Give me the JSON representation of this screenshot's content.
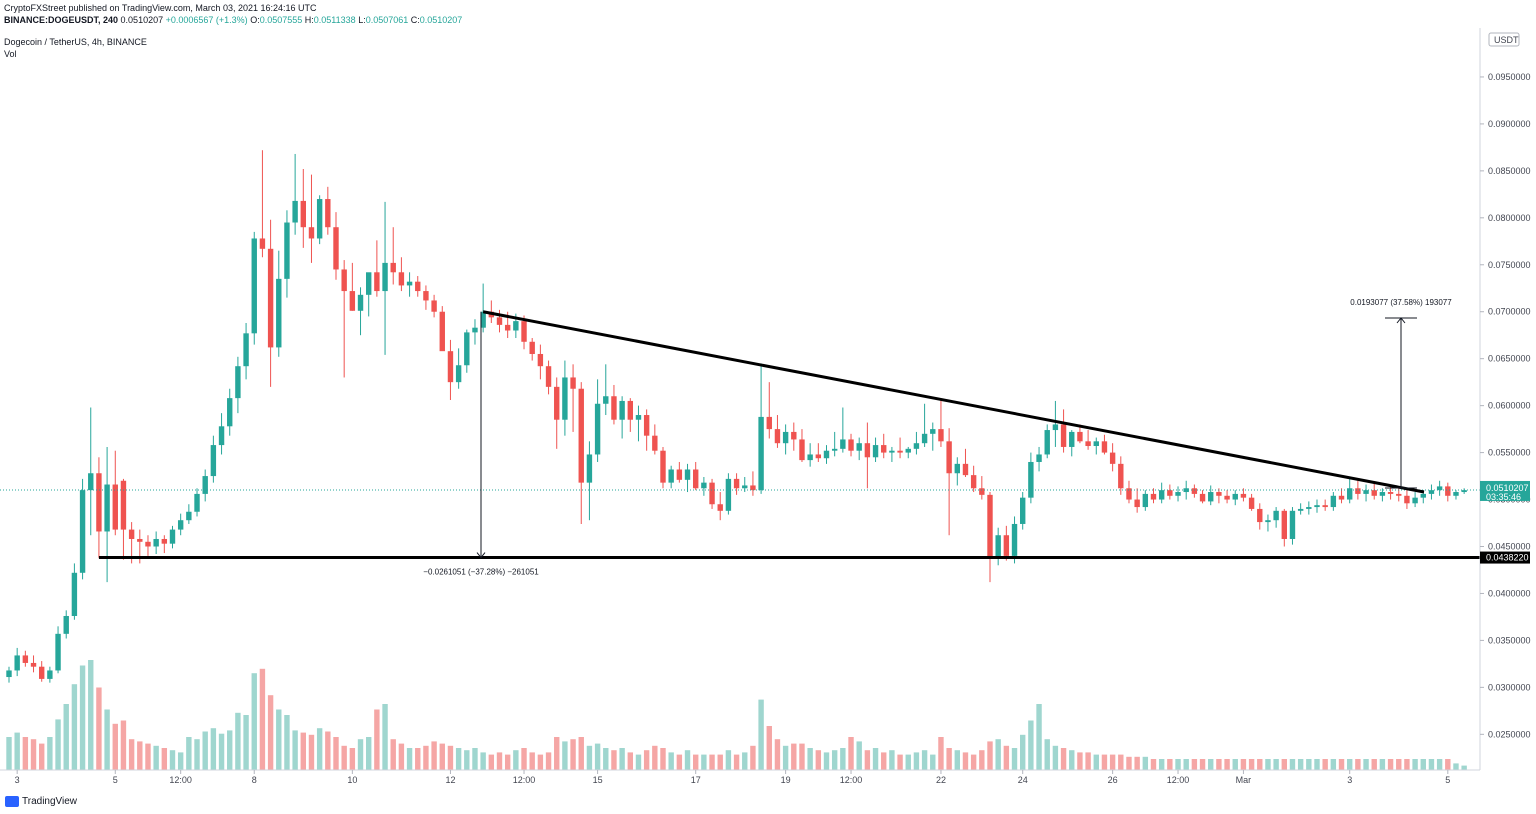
{
  "header": {
    "publisher_line": "CryptoFXStreet published on TradingView.com, March 03, 2021 16:24:16 UTC",
    "symbol_line": {
      "symbol": "BINANCE:DOGEUSDT, 240",
      "last": "0.0510207",
      "change": "+0.0006567 (+1.3%)",
      "o_label": "O:",
      "o": "0.0507555",
      "h_label": "H:",
      "h": "0.0511338",
      "l_label": "L:",
      "l": "0.0507061",
      "c_label": "C:",
      "c": "0.0510207"
    },
    "legend_title": "Dogecoin / TetherUS, 4h, BINANCE",
    "legend_vol": "Vol"
  },
  "branding": {
    "logo_text": "TradingView"
  },
  "colors": {
    "up": "#26a69a",
    "down": "#ef5350",
    "up_vol": "#9fd6cf",
    "down_vol": "#f5a6a5",
    "line": "#000000",
    "last_price_bg": "#26a69a"
  },
  "chart_data": {
    "type": "candlestick",
    "title": "Dogecoin / TetherUS, 4h, BINANCE",
    "currency_badge": "USDT",
    "ylim": [
      0.0212,
      0.1
    ],
    "y_ticks": [
      "0.0950000",
      "0.0900000",
      "0.0850000",
      "0.0800000",
      "0.0750000",
      "0.0700000",
      "0.0650000",
      "0.0600000",
      "0.0550000",
      "0.0500000",
      "0.0450000",
      "0.0400000",
      "0.0350000",
      "0.0300000",
      "0.0250000"
    ],
    "x_ticks": [
      "3",
      "5",
      "12:00",
      "8",
      "10",
      "12",
      "12:00",
      "15",
      "17",
      "19",
      "12:00",
      "22",
      "24",
      "26",
      "12:00",
      "Mar",
      "3",
      "5"
    ],
    "last_price": {
      "value": 0.0510207,
      "label": "0.0510207",
      "countdown": "03:35:46"
    },
    "support_label": "0.0438220",
    "support_level": 0.043822,
    "annotations": {
      "down_measure": "−0.0261051 (−37.28%) −261051",
      "up_measure": "0.0193077 (37.58%) 193077"
    },
    "trendline": {
      "start": [
        0.07,
        0
      ],
      "end": [
        0.0508,
        1
      ]
    },
    "candles": [
      [
        0.0311,
        0.0322,
        0.0305,
        0.0318
      ],
      [
        0.0318,
        0.0342,
        0.0312,
        0.0334
      ],
      [
        0.0334,
        0.0339,
        0.0322,
        0.0326
      ],
      [
        0.0326,
        0.0334,
        0.0316,
        0.0322
      ],
      [
        0.0322,
        0.0328,
        0.0306,
        0.0309
      ],
      [
        0.0309,
        0.0322,
        0.0305,
        0.0318
      ],
      [
        0.0318,
        0.0365,
        0.0315,
        0.0357
      ],
      [
        0.0357,
        0.0382,
        0.0352,
        0.0376
      ],
      [
        0.0376,
        0.0432,
        0.0372,
        0.0422
      ],
      [
        0.0422,
        0.0522,
        0.0415,
        0.051
      ],
      [
        0.051,
        0.0598,
        0.0462,
        0.0528
      ],
      [
        0.0528,
        0.0545,
        0.0438,
        0.0466
      ],
      [
        0.0466,
        0.0556,
        0.0412,
        0.0516
      ],
      [
        0.0516,
        0.0552,
        0.0462,
        0.0468
      ],
      [
        0.052,
        0.0522,
        0.0436,
        0.0468
      ],
      [
        0.0468,
        0.0476,
        0.0432,
        0.0458
      ],
      [
        0.0458,
        0.0468,
        0.0432,
        0.0455
      ],
      [
        0.0455,
        0.0462,
        0.044,
        0.045
      ],
      [
        0.045,
        0.0466,
        0.0442,
        0.0458
      ],
      [
        0.0458,
        0.0462,
        0.0443,
        0.0453
      ],
      [
        0.0453,
        0.0472,
        0.0448,
        0.0468
      ],
      [
        0.0468,
        0.0485,
        0.0462,
        0.0478
      ],
      [
        0.0478,
        0.0495,
        0.0474,
        0.0487
      ],
      [
        0.0487,
        0.0512,
        0.0482,
        0.0506
      ],
      [
        0.0506,
        0.0532,
        0.0498,
        0.0525
      ],
      [
        0.0525,
        0.0568,
        0.0518,
        0.0558
      ],
      [
        0.0558,
        0.0592,
        0.0548,
        0.0578
      ],
      [
        0.0578,
        0.0618,
        0.0568,
        0.0608
      ],
      [
        0.0608,
        0.0652,
        0.0592,
        0.0642
      ],
      [
        0.0642,
        0.0688,
        0.0628,
        0.0677
      ],
      [
        0.0677,
        0.0785,
        0.0665,
        0.0778
      ],
      [
        0.0778,
        0.0872,
        0.0758,
        0.0767
      ],
      [
        0.0767,
        0.0798,
        0.062,
        0.0662
      ],
      [
        0.0662,
        0.0765,
        0.0652,
        0.0735
      ],
      [
        0.0735,
        0.0808,
        0.0715,
        0.0795
      ],
      [
        0.0795,
        0.0868,
        0.0782,
        0.0818
      ],
      [
        0.0818,
        0.0852,
        0.0768,
        0.079
      ],
      [
        0.079,
        0.0846,
        0.0752,
        0.0778
      ],
      [
        0.0778,
        0.0824,
        0.0772,
        0.082
      ],
      [
        0.082,
        0.0833,
        0.0782,
        0.079
      ],
      [
        0.079,
        0.0806,
        0.0734,
        0.0745
      ],
      [
        0.0745,
        0.0755,
        0.063,
        0.0722
      ],
      [
        0.0722,
        0.0752,
        0.0701,
        0.0701
      ],
      [
        0.0701,
        0.0726,
        0.0675,
        0.0718
      ],
      [
        0.0718,
        0.074,
        0.0695,
        0.0742
      ],
      [
        0.0742,
        0.0776,
        0.0716,
        0.0722
      ],
      [
        0.0722,
        0.0817,
        0.0654,
        0.0752
      ],
      [
        0.0752,
        0.079,
        0.0729,
        0.0742
      ],
      [
        0.0742,
        0.0758,
        0.0722,
        0.0728
      ],
      [
        0.0728,
        0.0742,
        0.0716,
        0.0732
      ],
      [
        0.0732,
        0.0738,
        0.0716,
        0.0722
      ],
      [
        0.0722,
        0.0728,
        0.0702,
        0.0712
      ],
      [
        0.0712,
        0.0718,
        0.0694,
        0.07
      ],
      [
        0.07,
        0.0706,
        0.0664,
        0.0658
      ],
      [
        0.0658,
        0.067,
        0.0606,
        0.0625
      ],
      [
        0.0625,
        0.0661,
        0.0618,
        0.0643
      ],
      [
        0.0643,
        0.0681,
        0.0635,
        0.0678
      ],
      [
        0.0678,
        0.0692,
        0.0665,
        0.0683
      ],
      [
        0.0683,
        0.073,
        0.0678,
        0.07
      ],
      [
        0.07,
        0.0712,
        0.0688,
        0.0694
      ],
      [
        0.0694,
        0.0702,
        0.0678,
        0.0686
      ],
      [
        0.0686,
        0.07,
        0.0672,
        0.068
      ],
      [
        0.068,
        0.0698,
        0.0672,
        0.069
      ],
      [
        0.069,
        0.0696,
        0.066,
        0.0668
      ],
      [
        0.0668,
        0.0672,
        0.0648,
        0.0655
      ],
      [
        0.0655,
        0.0665,
        0.0628,
        0.0642
      ],
      [
        0.0642,
        0.0648,
        0.0612,
        0.062
      ],
      [
        0.062,
        0.063,
        0.0554,
        0.0585
      ],
      [
        0.0585,
        0.0648,
        0.0568,
        0.063
      ],
      [
        0.063,
        0.0644,
        0.0572,
        0.0618
      ],
      [
        0.0618,
        0.0625,
        0.0474,
        0.0518
      ],
      [
        0.0518,
        0.0562,
        0.0478,
        0.0548
      ],
      [
        0.0548,
        0.0628,
        0.054,
        0.0602
      ],
      [
        0.0602,
        0.0644,
        0.059,
        0.061
      ],
      [
        0.061,
        0.0622,
        0.058,
        0.0585
      ],
      [
        0.0585,
        0.061,
        0.0565,
        0.0605
      ],
      [
        0.0605,
        0.0608,
        0.0572,
        0.0585
      ],
      [
        0.0585,
        0.06,
        0.0562,
        0.059
      ],
      [
        0.059,
        0.0596,
        0.0552,
        0.0568
      ],
      [
        0.0568,
        0.058,
        0.0548,
        0.0552
      ],
      [
        0.0552,
        0.0556,
        0.0512,
        0.0518
      ],
      [
        0.0518,
        0.0536,
        0.0512,
        0.0532
      ],
      [
        0.0532,
        0.054,
        0.0518,
        0.0521
      ],
      [
        0.0521,
        0.0538,
        0.0508,
        0.0532
      ],
      [
        0.0532,
        0.054,
        0.051,
        0.0512
      ],
      [
        0.0512,
        0.0524,
        0.0504,
        0.0518
      ],
      [
        0.0518,
        0.0522,
        0.049,
        0.0495
      ],
      [
        0.0495,
        0.0508,
        0.0478,
        0.0488
      ],
      [
        0.0488,
        0.0528,
        0.0484,
        0.0522
      ],
      [
        0.0522,
        0.0528,
        0.0505,
        0.0512
      ],
      [
        0.0512,
        0.0524,
        0.0508,
        0.0515
      ],
      [
        0.0515,
        0.053,
        0.0504,
        0.051
      ],
      [
        0.051,
        0.0645,
        0.0506,
        0.0588
      ],
      [
        0.0588,
        0.0625,
        0.0565,
        0.0575
      ],
      [
        0.0575,
        0.059,
        0.0555,
        0.056
      ],
      [
        0.056,
        0.058,
        0.0548,
        0.0572
      ],
      [
        0.0572,
        0.0582,
        0.0552,
        0.0564
      ],
      [
        0.0564,
        0.0575,
        0.054,
        0.0542
      ],
      [
        0.0542,
        0.056,
        0.0535,
        0.0548
      ],
      [
        0.0548,
        0.056,
        0.054,
        0.0544
      ],
      [
        0.0544,
        0.0558,
        0.0538,
        0.0552
      ],
      [
        0.0552,
        0.0572,
        0.0546,
        0.0554
      ],
      [
        0.0554,
        0.0598,
        0.055,
        0.0564
      ],
      [
        0.0564,
        0.057,
        0.0546,
        0.0552
      ],
      [
        0.0552,
        0.0566,
        0.0542,
        0.056
      ],
      [
        0.056,
        0.0582,
        0.0512,
        0.0545
      ],
      [
        0.0545,
        0.0566,
        0.054,
        0.0558
      ],
      [
        0.0558,
        0.057,
        0.0544,
        0.055
      ],
      [
        0.055,
        0.0556,
        0.054,
        0.0552
      ],
      [
        0.0552,
        0.0566,
        0.0544,
        0.055
      ],
      [
        0.055,
        0.0556,
        0.0544,
        0.0554
      ],
      [
        0.0554,
        0.0572,
        0.0548,
        0.056
      ],
      [
        0.056,
        0.0602,
        0.0556,
        0.057
      ],
      [
        0.057,
        0.0582,
        0.0552,
        0.0575
      ],
      [
        0.0575,
        0.0606,
        0.0556,
        0.0562
      ],
      [
        0.0562,
        0.0576,
        0.0462,
        0.0528
      ],
      [
        0.0528,
        0.0545,
        0.0515,
        0.0538
      ],
      [
        0.0538,
        0.0554,
        0.0524,
        0.0526
      ],
      [
        0.0526,
        0.0536,
        0.0508,
        0.0512
      ],
      [
        0.0512,
        0.0525,
        0.05,
        0.0505
      ],
      [
        0.0505,
        0.0508,
        0.0412,
        0.0438
      ],
      [
        0.0438,
        0.047,
        0.043,
        0.0462
      ],
      [
        0.0462,
        0.0472,
        0.0435,
        0.044
      ],
      [
        0.044,
        0.0482,
        0.0432,
        0.0474
      ],
      [
        0.0474,
        0.0508,
        0.0468,
        0.0502
      ],
      [
        0.0502,
        0.055,
        0.0496,
        0.054
      ],
      [
        0.054,
        0.0556,
        0.053,
        0.0548
      ],
      [
        0.0548,
        0.058,
        0.0544,
        0.0574
      ],
      [
        0.0574,
        0.0605,
        0.0556,
        0.058
      ],
      [
        0.058,
        0.0596,
        0.055,
        0.0556
      ],
      [
        0.0556,
        0.0574,
        0.0546,
        0.0572
      ],
      [
        0.0572,
        0.058,
        0.056,
        0.0562
      ],
      [
        0.0562,
        0.0574,
        0.0553,
        0.0557
      ],
      [
        0.0557,
        0.0566,
        0.0548,
        0.0562
      ],
      [
        0.0562,
        0.0569,
        0.0548,
        0.055
      ],
      [
        0.055,
        0.056,
        0.053,
        0.0538
      ],
      [
        0.0538,
        0.0546,
        0.0505,
        0.0512
      ],
      [
        0.0512,
        0.052,
        0.0496,
        0.05
      ],
      [
        0.05,
        0.0512,
        0.0486,
        0.0492
      ],
      [
        0.0492,
        0.051,
        0.0488,
        0.0506
      ],
      [
        0.0506,
        0.0512,
        0.0496,
        0.05
      ],
      [
        0.05,
        0.0518,
        0.0496,
        0.051
      ],
      [
        0.051,
        0.0516,
        0.05,
        0.0504
      ],
      [
        0.0504,
        0.0514,
        0.0498,
        0.0508
      ],
      [
        0.0508,
        0.052,
        0.05,
        0.0512
      ],
      [
        0.0512,
        0.0516,
        0.0502,
        0.0506
      ],
      [
        0.0506,
        0.051,
        0.0496,
        0.0498
      ],
      [
        0.0498,
        0.0515,
        0.0494,
        0.0508
      ],
      [
        0.0508,
        0.0512,
        0.0496,
        0.0504
      ],
      [
        0.0504,
        0.051,
        0.0496,
        0.05
      ],
      [
        0.05,
        0.051,
        0.0494,
        0.0506
      ],
      [
        0.0506,
        0.0512,
        0.0498,
        0.0502
      ],
      [
        0.0502,
        0.0506,
        0.0488,
        0.049
      ],
      [
        0.049,
        0.0496,
        0.0468,
        0.0476
      ],
      [
        0.0476,
        0.0484,
        0.0466,
        0.0478
      ],
      [
        0.0478,
        0.0492,
        0.047,
        0.0488
      ],
      [
        0.0488,
        0.049,
        0.045,
        0.0458
      ],
      [
        0.0458,
        0.0492,
        0.0452,
        0.0488
      ],
      [
        0.0488,
        0.0496,
        0.0484,
        0.049
      ],
      [
        0.049,
        0.0498,
        0.0484,
        0.0492
      ],
      [
        0.0492,
        0.05,
        0.0486,
        0.0494
      ],
      [
        0.0494,
        0.05,
        0.0488,
        0.0492
      ],
      [
        0.0492,
        0.0508,
        0.0488,
        0.0504
      ],
      [
        0.0504,
        0.0512,
        0.0496,
        0.05
      ],
      [
        0.05,
        0.0522,
        0.0496,
        0.0512
      ],
      [
        0.0512,
        0.0522,
        0.05,
        0.0506
      ],
      [
        0.0506,
        0.0516,
        0.0498,
        0.051
      ],
      [
        0.051,
        0.0518,
        0.05,
        0.0504
      ],
      [
        0.0504,
        0.0512,
        0.0498,
        0.0508
      ],
      [
        0.0508,
        0.0514,
        0.05,
        0.0506
      ],
      [
        0.0506,
        0.0512,
        0.0498,
        0.0504
      ],
      [
        0.0504,
        0.051,
        0.049,
        0.0496
      ],
      [
        0.0496,
        0.0508,
        0.0492,
        0.0502
      ],
      [
        0.0502,
        0.051,
        0.0496,
        0.0506
      ],
      [
        0.0506,
        0.0516,
        0.05,
        0.051
      ],
      [
        0.051,
        0.052,
        0.0504,
        0.0514
      ],
      [
        0.0514,
        0.0518,
        0.0498,
        0.0504
      ],
      [
        0.0504,
        0.051,
        0.05,
        0.0508
      ],
      [
        0.0508,
        0.0512,
        0.0506,
        0.051
      ]
    ],
    "volumes": [
      0.3,
      0.34,
      0.3,
      0.28,
      0.24,
      0.3,
      0.46,
      0.6,
      0.78,
      0.95,
      1.0,
      0.75,
      0.55,
      0.42,
      0.45,
      0.28,
      0.26,
      0.24,
      0.22,
      0.2,
      0.18,
      0.16,
      0.3,
      0.28,
      0.35,
      0.38,
      0.33,
      0.36,
      0.52,
      0.5,
      0.88,
      0.92,
      0.68,
      0.55,
      0.5,
      0.36,
      0.34,
      0.32,
      0.38,
      0.35,
      0.3,
      0.22,
      0.2,
      0.28,
      0.3,
      0.55,
      0.6,
      0.28,
      0.24,
      0.2,
      0.2,
      0.22,
      0.26,
      0.24,
      0.22,
      0.2,
      0.18,
      0.2,
      0.16,
      0.14,
      0.16,
      0.14,
      0.18,
      0.2,
      0.16,
      0.14,
      0.16,
      0.3,
      0.26,
      0.28,
      0.3,
      0.22,
      0.24,
      0.2,
      0.18,
      0.2,
      0.16,
      0.14,
      0.18,
      0.22,
      0.2,
      0.16,
      0.14,
      0.18,
      0.14,
      0.14,
      0.14,
      0.14,
      0.18,
      0.14,
      0.16,
      0.22,
      0.64,
      0.4,
      0.28,
      0.22,
      0.24,
      0.24,
      0.2,
      0.18,
      0.16,
      0.18,
      0.2,
      0.3,
      0.26,
      0.18,
      0.2,
      0.16,
      0.18,
      0.14,
      0.14,
      0.16,
      0.18,
      0.14,
      0.3,
      0.2,
      0.18,
      0.16,
      0.14,
      0.18,
      0.26,
      0.28,
      0.22,
      0.2,
      0.32,
      0.45,
      0.6,
      0.28,
      0.22,
      0.2,
      0.18,
      0.16,
      0.16,
      0.14,
      0.14,
      0.14,
      0.14,
      0.12,
      0.12,
      0.12,
      0.1,
      0.1,
      0.1,
      0.1,
      0.1,
      0.1,
      0.1,
      0.1,
      0.1,
      0.1,
      0.1,
      0.1,
      0.1,
      0.1,
      0.1,
      0.1,
      0.1,
      0.1,
      0.1,
      0.1,
      0.1,
      0.1,
      0.1,
      0.1,
      0.1,
      0.1,
      0.1,
      0.1,
      0.1,
      0.1,
      0.1,
      0.1,
      0.1,
      0.1,
      0.1,
      0.1,
      0.1,
      0.06,
      0.04
    ]
  }
}
